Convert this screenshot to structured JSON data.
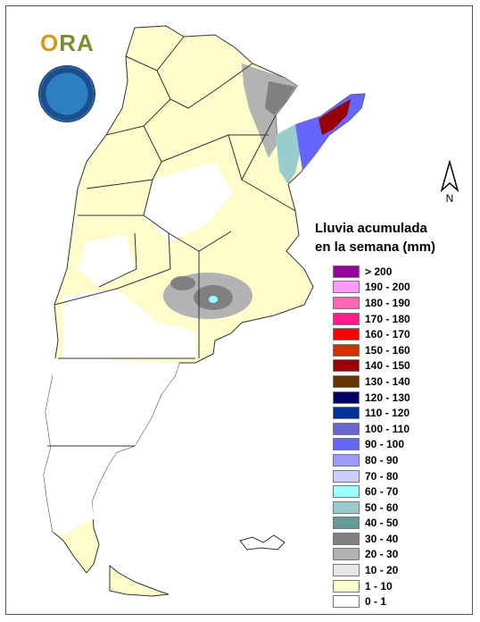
{
  "logo": {
    "text_o": "O",
    "text_rest": "RA"
  },
  "legend": {
    "title_line1": "Lluvia acumulada",
    "title_line2": "en la semana (mm)",
    "classes": [
      {
        "label": "> 200",
        "color": "#990099"
      },
      {
        "label": "190 - 200",
        "color": "#ff99ff"
      },
      {
        "label": "180 - 190",
        "color": "#ff66b3"
      },
      {
        "label": "170 - 180",
        "color": "#ff1a8c"
      },
      {
        "label": "160 - 170",
        "color": "#ff0000"
      },
      {
        "label": "150 - 160",
        "color": "#cc3300"
      },
      {
        "label": "140 - 150",
        "color": "#990000"
      },
      {
        "label": "130 - 140",
        "color": "#663300"
      },
      {
        "label": "120 - 130",
        "color": "#000066"
      },
      {
        "label": "110 - 120",
        "color": "#003399"
      },
      {
        "label": "100 - 110",
        "color": "#6666cc"
      },
      {
        "label": "90 - 100",
        "color": "#6666ff"
      },
      {
        "label": "80 - 90",
        "color": "#9999ff"
      },
      {
        "label": "70 - 80",
        "color": "#ccccff"
      },
      {
        "label": "60 - 70",
        "color": "#99ffff"
      },
      {
        "label": "50 - 60",
        "color": "#99cccc"
      },
      {
        "label": "40 - 50",
        "color": "#669999"
      },
      {
        "label": "30 - 40",
        "color": "#808080"
      },
      {
        "label": "20 - 30",
        "color": "#b3b3b3"
      },
      {
        "label": "10 - 20",
        "color": "#e6e6e6"
      },
      {
        "label": "1 - 10",
        "color": "#ffffcc"
      },
      {
        "label": "0 - 1",
        "color": "#ffffff"
      }
    ]
  },
  "north_label": "N"
}
